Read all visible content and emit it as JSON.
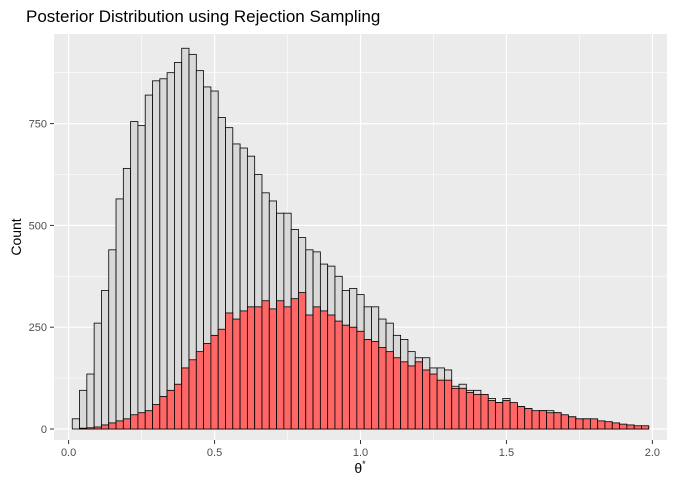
{
  "chart_data": {
    "type": "bar",
    "title": "Posterior Distribution using Rejection Sampling",
    "xlabel": "θ*",
    "xlabel_main": "θ",
    "xlabel_sup": "*",
    "ylabel": "Count",
    "xlim": [
      -0.05,
      2.05
    ],
    "ylim": [
      -27,
      970
    ],
    "x_ticks": [
      0.0,
      0.5,
      1.0,
      1.5,
      2.0
    ],
    "x_tick_labels": [
      "0.0",
      "0.5",
      "1.0",
      "1.5",
      "2.0"
    ],
    "y_ticks": [
      0,
      250,
      500,
      750
    ],
    "y_tick_labels": [
      "0",
      "250",
      "500",
      "750"
    ],
    "bin_width": 0.025,
    "grid": true,
    "legend": "none",
    "series": [
      {
        "fill": "#d9d9d9",
        "stroke": "#000000",
        "x": [
          0.025,
          0.05,
          0.075,
          0.1,
          0.125,
          0.15,
          0.175,
          0.2,
          0.225,
          0.25,
          0.275,
          0.3,
          0.325,
          0.35,
          0.375,
          0.4,
          0.425,
          0.45,
          0.475,
          0.5,
          0.525,
          0.55,
          0.575,
          0.6,
          0.625,
          0.65,
          0.675,
          0.7,
          0.725,
          0.75,
          0.775,
          0.8,
          0.825,
          0.85,
          0.875,
          0.9,
          0.925,
          0.95,
          0.975,
          1.0,
          1.025,
          1.05,
          1.075,
          1.1,
          1.125,
          1.15,
          1.175,
          1.2,
          1.225,
          1.25,
          1.275,
          1.3,
          1.325,
          1.35,
          1.375,
          1.4,
          1.425,
          1.45,
          1.475,
          1.5,
          1.525,
          1.55,
          1.575,
          1.6,
          1.625,
          1.65,
          1.675,
          1.7,
          1.725,
          1.75,
          1.775,
          1.8,
          1.825,
          1.85,
          1.875,
          1.9,
          1.925,
          1.95,
          1.975
        ],
        "values": [
          25,
          95,
          135,
          260,
          340,
          440,
          565,
          640,
          755,
          745,
          820,
          855,
          860,
          875,
          900,
          935,
          920,
          880,
          840,
          830,
          765,
          740,
          700,
          690,
          670,
          625,
          580,
          560,
          530,
          530,
          490,
          470,
          440,
          435,
          405,
          400,
          375,
          340,
          345,
          330,
          300,
          300,
          270,
          260,
          230,
          220,
          190,
          175,
          175,
          150,
          150,
          145,
          105,
          110,
          95,
          95,
          80,
          75,
          65,
          75,
          60,
          55,
          50,
          40,
          45,
          45,
          40,
          30,
          30,
          25,
          25,
          20,
          15,
          15,
          15,
          10,
          5,
          5,
          5
        ]
      },
      {
        "fill": "#ff6666",
        "stroke": "#000000",
        "x": [
          0.05,
          0.075,
          0.1,
          0.125,
          0.15,
          0.175,
          0.2,
          0.225,
          0.25,
          0.275,
          0.3,
          0.325,
          0.35,
          0.375,
          0.4,
          0.425,
          0.45,
          0.475,
          0.5,
          0.525,
          0.55,
          0.575,
          0.6,
          0.625,
          0.65,
          0.675,
          0.7,
          0.725,
          0.75,
          0.775,
          0.8,
          0.825,
          0.85,
          0.875,
          0.9,
          0.925,
          0.95,
          0.975,
          1.0,
          1.025,
          1.05,
          1.075,
          1.1,
          1.125,
          1.15,
          1.175,
          1.2,
          1.225,
          1.25,
          1.275,
          1.3,
          1.325,
          1.35,
          1.375,
          1.4,
          1.425,
          1.45,
          1.475,
          1.5,
          1.525,
          1.55,
          1.575,
          1.6,
          1.625,
          1.65,
          1.675,
          1.7,
          1.725,
          1.75,
          1.775,
          1.8,
          1.825,
          1.85,
          1.875,
          1.9,
          1.925,
          1.95,
          1.975
        ],
        "values": [
          2,
          3,
          5,
          10,
          15,
          20,
          25,
          35,
          40,
          45,
          60,
          80,
          95,
          110,
          150,
          170,
          190,
          210,
          230,
          245,
          285,
          270,
          290,
          300,
          300,
          315,
          295,
          315,
          300,
          320,
          335,
          280,
          300,
          290,
          280,
          265,
          255,
          250,
          240,
          220,
          215,
          200,
          190,
          175,
          165,
          155,
          165,
          145,
          135,
          120,
          120,
          100,
          100,
          90,
          85,
          85,
          70,
          65,
          70,
          65,
          55,
          50,
          45,
          45,
          40,
          40,
          35,
          30,
          25,
          25,
          25,
          20,
          18,
          15,
          12,
          10,
          8,
          8
        ]
      }
    ]
  }
}
